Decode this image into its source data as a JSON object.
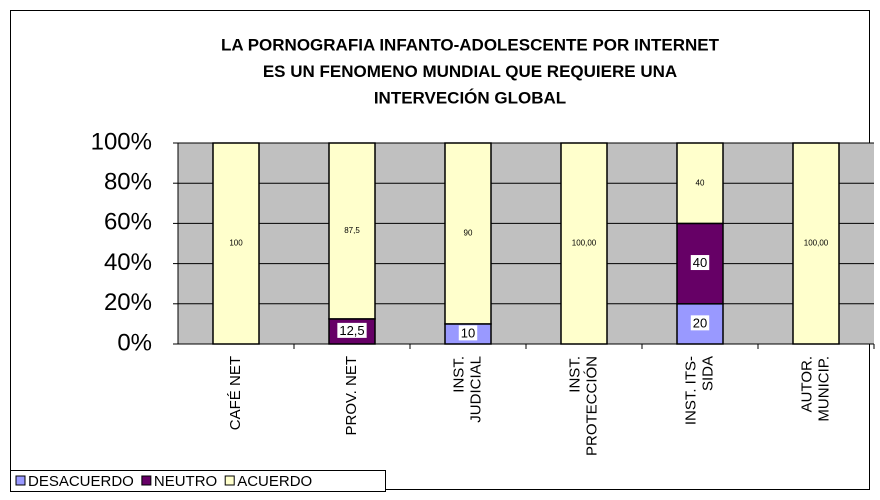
{
  "chart_data": {
    "type": "stacked_bar",
    "title": [
      "LA PORNOGRAFIA INFANTO-ADOLESCENTE POR INTERNET",
      "ES UN FENOMENO MUNDIAL QUE REQUIERE UNA",
      "INTERVECIÓN GLOBAL"
    ],
    "categories": [
      [
        "CAFÉ NET"
      ],
      [
        "PROV. NET"
      ],
      [
        "INST.",
        "JUDICIAL"
      ],
      [
        "INST.",
        "PROTECCIÓN"
      ],
      [
        "INST. ITS-",
        "SIDA"
      ],
      [
        "AUTOR.",
        "MUNICIP."
      ]
    ],
    "series": [
      {
        "name": "DESACUERDO",
        "color": "#9999ff",
        "values": [
          0,
          0,
          10,
          0,
          20,
          0
        ],
        "value_labels": [
          null,
          null,
          "10",
          null,
          "20",
          null
        ]
      },
      {
        "name": "NEUTRO",
        "color": "#660066",
        "values": [
          0,
          12.5,
          0,
          0,
          40,
          0
        ],
        "value_labels": [
          null,
          "12,5",
          null,
          null,
          "40",
          null
        ]
      },
      {
        "name": "ACUERDO",
        "color": "#ffffcc",
        "values": [
          100,
          87.5,
          90,
          100,
          40,
          100
        ],
        "value_labels": [
          "100",
          "87,5",
          "90",
          "100,00",
          "40",
          "100,00"
        ]
      }
    ],
    "ylim": [
      0,
      100
    ],
    "yticks": [
      {
        "value": 0,
        "label": "0%"
      },
      {
        "value": 20,
        "label": "20%"
      },
      {
        "value": 40,
        "label": "40%"
      },
      {
        "value": 60,
        "label": "60%"
      },
      {
        "value": 80,
        "label": "80%"
      },
      {
        "value": 100,
        "label": "100%"
      }
    ],
    "grid": true,
    "legend": "bottom-left"
  }
}
